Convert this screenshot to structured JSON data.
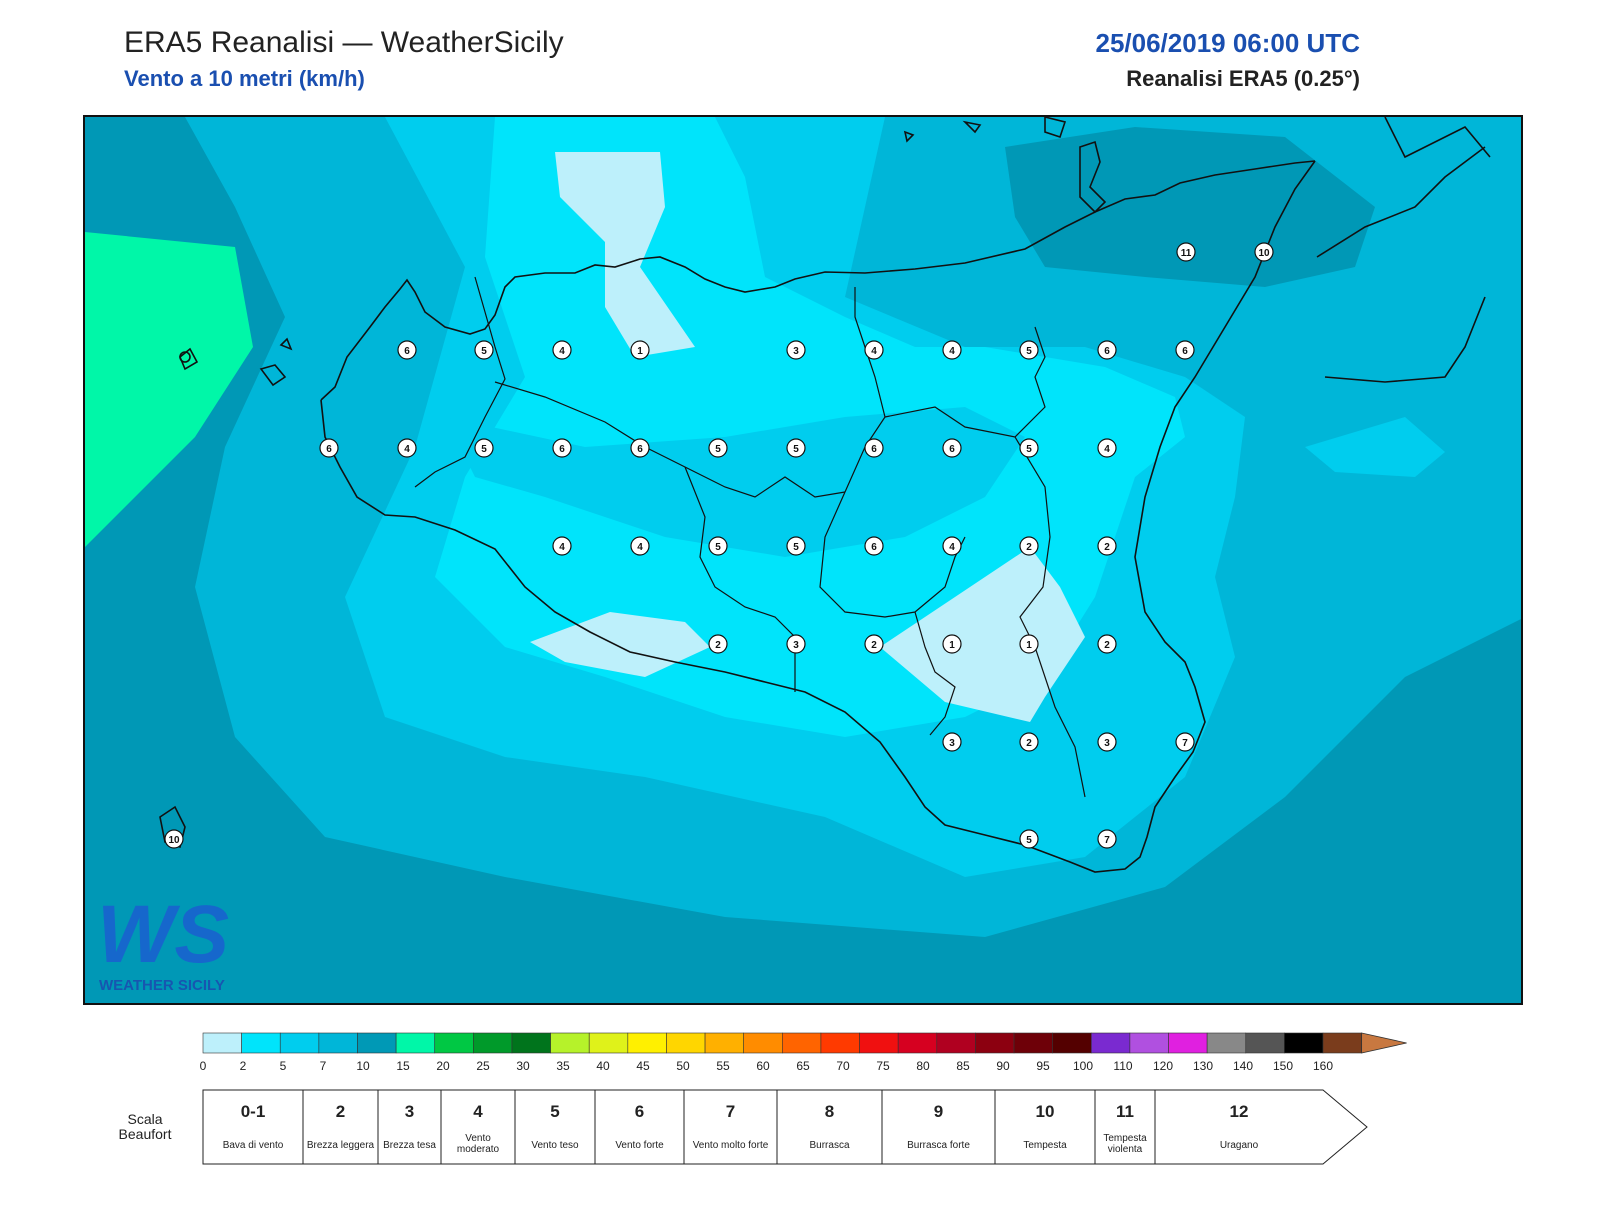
{
  "header": {
    "title": "ERA5 Reanalisi — WeatherSicily",
    "subtitle": "Vento a 10 metri (km/h)",
    "datetime": "25/06/2019 06:00 UTC",
    "source": "Reanalisi ERA5 (0.25°)"
  },
  "logo": {
    "letters": "WS",
    "text": "WEATHER SICILY"
  },
  "stations": [
    {
      "v": "11"
    },
    {
      "v": "10"
    },
    {
      "v": "6"
    },
    {
      "v": "5"
    },
    {
      "v": "4"
    },
    {
      "v": "1"
    },
    {
      "v": "3"
    },
    {
      "v": "4"
    },
    {
      "v": "4"
    },
    {
      "v": "5"
    },
    {
      "v": "6"
    },
    {
      "v": "6"
    },
    {
      "v": "6"
    },
    {
      "v": "4"
    },
    {
      "v": "5"
    },
    {
      "v": "6"
    },
    {
      "v": "6"
    },
    {
      "v": "5"
    },
    {
      "v": "5"
    },
    {
      "v": "6"
    },
    {
      "v": "6"
    },
    {
      "v": "5"
    },
    {
      "v": "4"
    },
    {
      "v": "4"
    },
    {
      "v": "4"
    },
    {
      "v": "5"
    },
    {
      "v": "5"
    },
    {
      "v": "6"
    },
    {
      "v": "4"
    },
    {
      "v": "2"
    },
    {
      "v": "2"
    },
    {
      "v": "2"
    },
    {
      "v": "3"
    },
    {
      "v": "2"
    },
    {
      "v": "1"
    },
    {
      "v": "1"
    },
    {
      "v": "2"
    },
    {
      "v": "3"
    },
    {
      "v": "2"
    },
    {
      "v": "3"
    },
    {
      "v": "7"
    },
    {
      "v": "5"
    },
    {
      "v": "7"
    },
    {
      "v": "10"
    }
  ],
  "colorbar": {
    "ticks": [
      "0",
      "2",
      "5",
      "7",
      "10",
      "15",
      "20",
      "25",
      "30",
      "35",
      "40",
      "45",
      "50",
      "55",
      "60",
      "65",
      "70",
      "75",
      "80",
      "85",
      "90",
      "95",
      "100",
      "110",
      "120",
      "130",
      "140",
      "150",
      "160"
    ],
    "colors": [
      "#bdf0fb",
      "#00e4fb",
      "#00cdee",
      "#00b6d8",
      "#0099b6",
      "#00f7a8",
      "#00c844",
      "#009a2a",
      "#00741c",
      "#b6f22a",
      "#dff21a",
      "#fff000",
      "#ffd600",
      "#ffb000",
      "#ff8c00",
      "#ff6400",
      "#ff3a00",
      "#f01010",
      "#d60020",
      "#b00020",
      "#8c0010",
      "#6e0008",
      "#540000",
      "#7a2ad0",
      "#b050e0",
      "#e020e0",
      "#888888",
      "#555555",
      "#000000",
      "#7a3c1c",
      "#c87840"
    ]
  },
  "beaufort": {
    "title": "Scala Beaufort",
    "levels": [
      {
        "num": "0-1",
        "desc": "Bava di vento"
      },
      {
        "num": "2",
        "desc": "Brezza leggera"
      },
      {
        "num": "3",
        "desc": "Brezza tesa"
      },
      {
        "num": "4",
        "desc": "Vento moderato"
      },
      {
        "num": "5",
        "desc": "Vento teso"
      },
      {
        "num": "6",
        "desc": "Vento forte"
      },
      {
        "num": "7",
        "desc": "Vento molto forte"
      },
      {
        "num": "8",
        "desc": "Burrasca"
      },
      {
        "num": "9",
        "desc": "Burrasca forte"
      },
      {
        "num": "10",
        "desc": "Tempesta"
      },
      {
        "num": "11",
        "desc": "Tempesta violenta"
      },
      {
        "num": "12",
        "desc": "Uragano"
      }
    ]
  }
}
